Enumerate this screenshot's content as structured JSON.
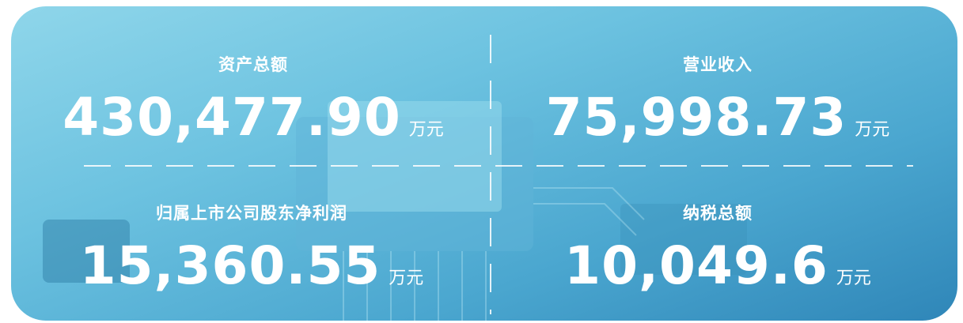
{
  "stats": [
    {
      "label": "资产总额",
      "value": "430,477.90",
      "unit": "万元"
    },
    {
      "label": "营业收入",
      "value": "75,998.73",
      "unit": "万元"
    },
    {
      "label": "归属上市公司股东净利润",
      "value": "15,360.55",
      "unit": "万元"
    },
    {
      "label": "纳税总额",
      "value": "10,049.6",
      "unit": "万元"
    }
  ]
}
